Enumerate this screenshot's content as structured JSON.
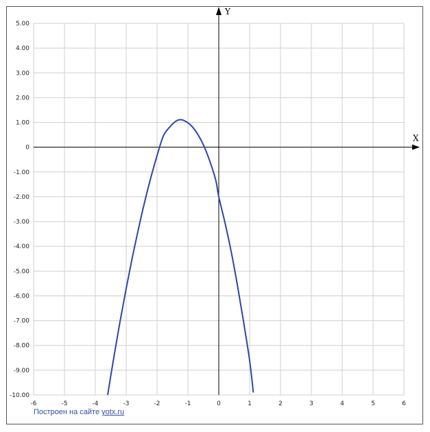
{
  "chart_data": {
    "type": "line",
    "xlim": [
      -6,
      6
    ],
    "ylim": [
      -10,
      5
    ],
    "grid": true,
    "x_axis_name": "X",
    "y_axis_name": "Y",
    "x_ticks": [
      {
        "v": -6,
        "label": "-6"
      },
      {
        "v": -5,
        "label": "-5"
      },
      {
        "v": -4,
        "label": "-4"
      },
      {
        "v": -3,
        "label": "-3"
      },
      {
        "v": -2,
        "label": "-2"
      },
      {
        "v": -1,
        "label": "-1"
      },
      {
        "v": 0,
        "label": "0"
      },
      {
        "v": 1,
        "label": "1"
      },
      {
        "v": 2,
        "label": "2"
      },
      {
        "v": 3,
        "label": "3"
      },
      {
        "v": 4,
        "label": "4"
      },
      {
        "v": 5,
        "label": "5"
      },
      {
        "v": 6,
        "label": "6"
      }
    ],
    "y_ticks": [
      {
        "v": 5,
        "label": "5.00"
      },
      {
        "v": 4,
        "label": "4.00"
      },
      {
        "v": 3,
        "label": "3.00"
      },
      {
        "v": 2,
        "label": "2.00"
      },
      {
        "v": 1,
        "label": "1.00"
      },
      {
        "v": 0,
        "label": "0"
      },
      {
        "v": -1,
        "label": "-1.00"
      },
      {
        "v": -2,
        "label": "-2.00"
      },
      {
        "v": -3,
        "label": "-3.00"
      },
      {
        "v": -4,
        "label": "-4.00"
      },
      {
        "v": -5,
        "label": "-5.00"
      },
      {
        "v": -6,
        "label": "-6.00"
      },
      {
        "v": -7,
        "label": "-7.00"
      },
      {
        "v": -8,
        "label": "-8.00"
      },
      {
        "v": -9,
        "label": "-9.00"
      },
      {
        "v": -10,
        "label": "-10.00"
      }
    ],
    "series": [
      {
        "color": "#2a47a6",
        "points": [
          [
            -3.6,
            -10.0
          ],
          [
            -3.4,
            -8.48
          ],
          [
            -3.2,
            -7.04
          ],
          [
            -3.0,
            -5.7
          ],
          [
            -2.8,
            -4.44
          ],
          [
            -2.6,
            -3.28
          ],
          [
            -2.4,
            -2.2
          ],
          [
            -2.2,
            -1.22
          ],
          [
            -2.0,
            -0.34
          ],
          [
            -1.8,
            0.44
          ],
          [
            -1.6,
            0.8
          ],
          [
            -1.4,
            1.04
          ],
          [
            -1.25,
            1.11
          ],
          [
            -1.1,
            1.06
          ],
          [
            -0.9,
            0.88
          ],
          [
            -0.7,
            0.56
          ],
          [
            -0.5,
            0.1
          ],
          [
            -0.3,
            -0.53
          ],
          [
            -0.1,
            -1.32
          ],
          [
            0.0,
            -2.0
          ],
          [
            0.2,
            -3.04
          ],
          [
            0.4,
            -4.2
          ],
          [
            0.6,
            -5.54
          ],
          [
            0.8,
            -7.02
          ],
          [
            1.0,
            -8.61
          ],
          [
            1.12,
            -9.9
          ]
        ]
      }
    ]
  },
  "footer": {
    "credit_prefix": "Построен на сайте ",
    "credit_link": "yotx.ru"
  }
}
